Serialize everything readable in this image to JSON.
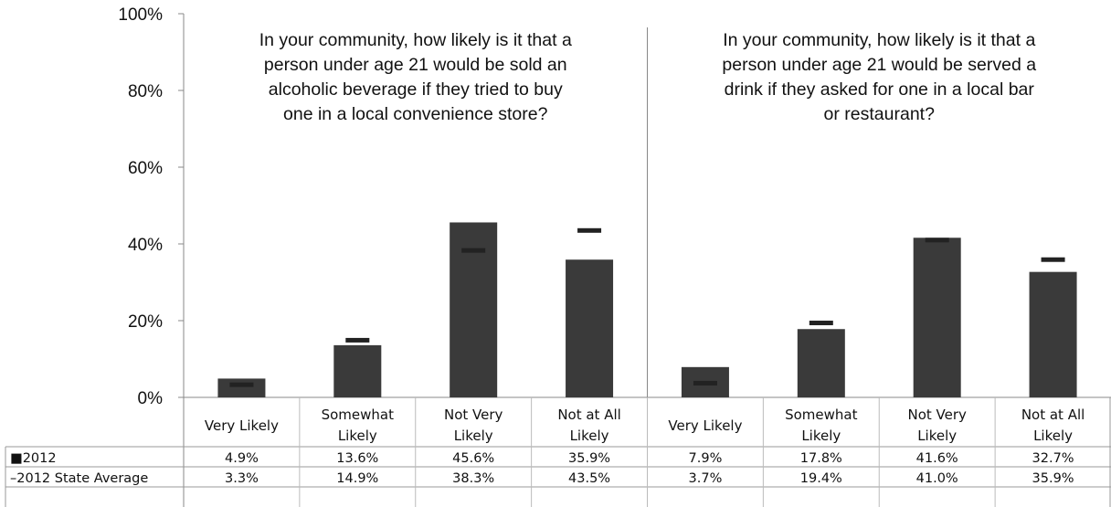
{
  "chart_data": {
    "type": "bar",
    "ylim": [
      0,
      100
    ],
    "y_ticks": [
      "0%",
      "20%",
      "40%",
      "60%",
      "80%",
      "100%"
    ],
    "panels": [
      {
        "question": [
          "In your community, how likely is it that a",
          "person under age 21 would be sold an",
          "alcoholic beverage if they tried to buy",
          "one in a local convenience store?"
        ],
        "categories": [
          [
            "Very Likely"
          ],
          [
            "Somewhat",
            "Likely"
          ],
          [
            "Not Very",
            "Likely"
          ],
          [
            "Not at All",
            "Likely"
          ]
        ],
        "values_2012": [
          4.9,
          13.6,
          45.6,
          35.9
        ],
        "values_state": [
          3.3,
          14.9,
          38.3,
          43.5
        ]
      },
      {
        "question": [
          "In your community, how likely is it that a",
          "person under age 21 would be served a",
          "drink if they asked for one in a local bar",
          "or restaurant?"
        ],
        "categories": [
          [
            "Very Likely"
          ],
          [
            "Somewhat",
            "Likely"
          ],
          [
            "Not Very",
            "Likely"
          ],
          [
            "Not at All",
            "Likely"
          ]
        ],
        "values_2012": [
          7.9,
          17.8,
          41.6,
          32.7
        ],
        "values_state": [
          3.7,
          19.4,
          41.0,
          35.9
        ]
      }
    ],
    "series": [
      {
        "name": "2012",
        "marker": "■",
        "values": [
          4.9,
          13.6,
          45.6,
          35.9,
          7.9,
          17.8,
          41.6,
          32.7
        ],
        "labels": [
          "4.9%",
          "13.6%",
          "45.6%",
          "35.9%",
          "7.9%",
          "17.8%",
          "41.6%",
          "32.7%"
        ],
        "color": "#3a3a3a"
      },
      {
        "name": "2012 State Average",
        "marker": "–",
        "values": [
          3.3,
          14.9,
          38.3,
          43.5,
          3.7,
          19.4,
          41.0,
          35.9
        ],
        "labels": [
          "3.3%",
          "14.9%",
          "38.3%",
          "43.5%",
          "3.7%",
          "19.4%",
          "41.0%",
          "35.9%"
        ],
        "color": "#222222"
      }
    ],
    "grid": false,
    "legend": "table-bottom-left"
  }
}
